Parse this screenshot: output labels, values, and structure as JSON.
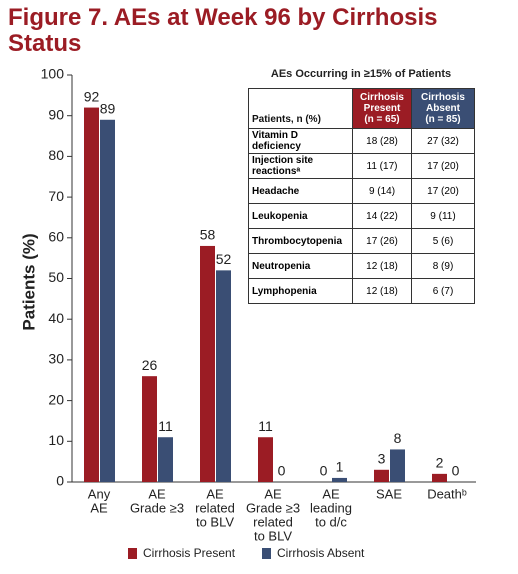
{
  "chart_data": {
    "type": "bar",
    "title": "Figure 7. AEs at Week 96 by Cirrhosis Status",
    "y_label": "Patients (%)",
    "categories": [
      [
        "Any",
        "AE"
      ],
      [
        "AE",
        "Grade ≥3"
      ],
      [
        "AE",
        "related",
        "to BLV"
      ],
      [
        "AE",
        "Grade ≥3",
        "related",
        "to BLV"
      ],
      [
        "AE",
        "leading",
        "to d/c"
      ],
      [
        "SAE"
      ],
      [
        "Deathᵇ"
      ]
    ],
    "series": [
      {
        "name": "Cirrhosis Present",
        "color": "#9b1c24",
        "values": [
          92,
          26,
          58,
          11,
          0,
          3,
          2
        ]
      },
      {
        "name": "Cirrhosis Absent",
        "color": "#3a4e74",
        "values": [
          89,
          11,
          52,
          0,
          1,
          8,
          0
        ]
      }
    ],
    "ylim": [
      0,
      100
    ],
    "yticks": [
      0,
      10,
      20,
      30,
      40,
      50,
      60,
      70,
      80,
      90,
      100
    ],
    "grid": false
  },
  "table": {
    "title": "AEs Occurring in ≥15% of Patients",
    "header": [
      [
        "Patients, n (%)"
      ],
      [
        "Cirrhosis",
        "Present",
        "(n = 65)"
      ],
      [
        "Cirrhosis",
        "Absent",
        "(n = 85)"
      ]
    ],
    "rows": [
      [
        [
          "Vitamin D",
          "deficiency"
        ],
        "18 (28)",
        "27 (32)"
      ],
      [
        [
          "Injection site",
          "reactionsᵃ"
        ],
        "11 (17)",
        "17 (20)"
      ],
      [
        [
          "Headache"
        ],
        "9 (14)",
        "17 (20)"
      ],
      [
        [
          "Leukopenia"
        ],
        "14 (22)",
        "9 (11)"
      ],
      [
        [
          "Thrombocytopenia"
        ],
        "17 (26)",
        "5 (6)"
      ],
      [
        [
          "Neutropenia"
        ],
        "12 (18)",
        "8 (9)"
      ],
      [
        [
          "Lymphopenia"
        ],
        "12 (18)",
        "6 (7)"
      ]
    ]
  }
}
